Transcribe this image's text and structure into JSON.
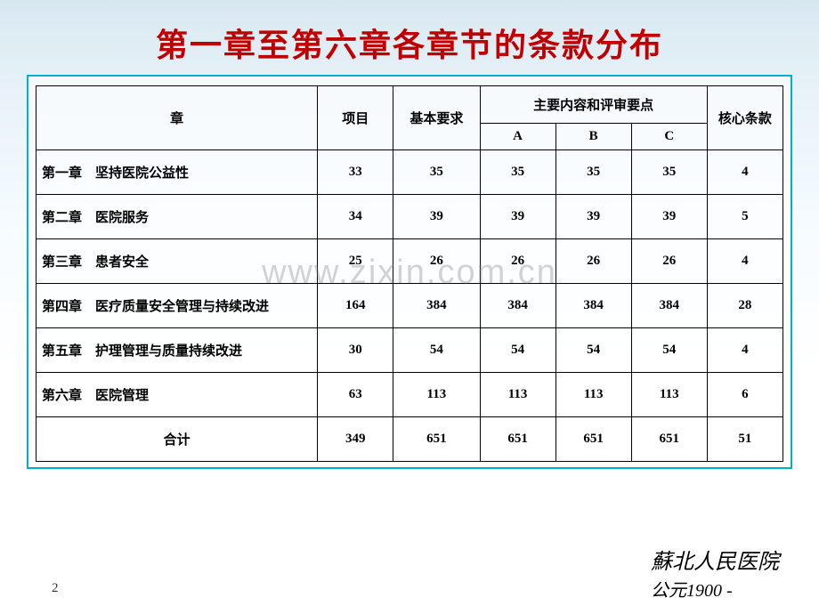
{
  "title": "第一章至第六章各章节的条款分布",
  "watermark": "www.zixin.com.cn",
  "pageNumber": "2",
  "footer": {
    "line1": "蘇北人民医院",
    "line2": "公元1900 -"
  },
  "table": {
    "headers": {
      "chapter": "章",
      "project": "项目",
      "basic": "基本要求",
      "mainGroup": "主要内容和评审要点",
      "subA": "A",
      "subB": "B",
      "subC": "C",
      "core": "核心条款"
    },
    "rows": [
      {
        "chapter": "第一章　坚持医院公益性",
        "project": "33",
        "basic": "35",
        "a": "35",
        "b": "35",
        "c": "35",
        "core": "4"
      },
      {
        "chapter": "第二章　医院服务",
        "project": "34",
        "basic": "39",
        "a": "39",
        "b": "39",
        "c": "39",
        "core": "5"
      },
      {
        "chapter": "第三章　患者安全",
        "project": "25",
        "basic": "26",
        "a": "26",
        "b": "26",
        "c": "26",
        "core": "4"
      },
      {
        "chapter": "第四章　医疗质量安全管理与持续改进",
        "project": "164",
        "basic": "384",
        "a": "384",
        "b": "384",
        "c": "384",
        "core": "28"
      },
      {
        "chapter": "第五章　护理管理与质量持续改进",
        "project": "30",
        "basic": "54",
        "a": "54",
        "b": "54",
        "c": "54",
        "core": "4"
      },
      {
        "chapter": "第六章　医院管理",
        "project": "63",
        "basic": "113",
        "a": "113",
        "b": "113",
        "c": "113",
        "core": "6"
      }
    ],
    "total": {
      "label": "合计",
      "project": "349",
      "basic": "651",
      "a": "651",
      "b": "651",
      "c": "651",
      "core": "51"
    }
  },
  "colors": {
    "titleColor": "#c00000",
    "borderColor": "#00b0d0",
    "cellBorder": "#000000",
    "bgTop": "#d8e8f0",
    "bgBottom": "#ffffff"
  }
}
